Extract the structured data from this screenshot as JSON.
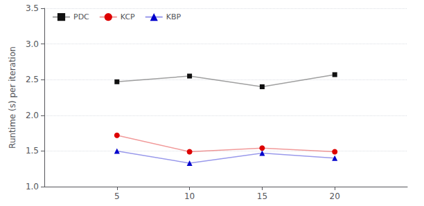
{
  "chart_data": {
    "type": "line",
    "ylabel": "Runtime (s) per iteration",
    "x": [
      5,
      10,
      15,
      20
    ],
    "series": [
      {
        "name": "PDC",
        "color": "#111111",
        "marker": "square",
        "values": [
          2.47,
          2.55,
          2.4,
          2.57
        ]
      },
      {
        "name": "KCP",
        "color": "#dd0000",
        "marker": "circle",
        "values": [
          1.72,
          1.49,
          1.54,
          1.49
        ]
      },
      {
        "name": "KBP",
        "color": "#0000cc",
        "marker": "triangle",
        "values": [
          1.5,
          1.33,
          1.47,
          1.4
        ]
      }
    ],
    "xlim": [
      0,
      25
    ],
    "xticks": [
      5,
      10,
      15,
      20
    ],
    "ylim": [
      1.0,
      3.5
    ],
    "yticks": [
      {
        "value": 1.0,
        "label": "1.0"
      },
      1.5,
      {
        "value": 2.0,
        "label": "2.0"
      },
      2.5,
      {
        "value": 3.0,
        "label": "3.0"
      },
      3.5
    ],
    "grid": true,
    "legend": "upper left"
  }
}
